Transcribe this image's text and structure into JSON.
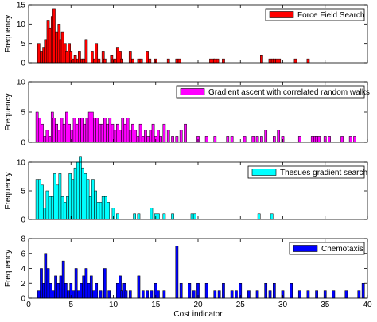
{
  "chart_data": [
    {
      "type": "bar",
      "series": [
        {
          "name": "Force Field Search",
          "color": "#ff0000",
          "x": [
            1.2,
            1.5,
            1.8,
            2.0,
            2.3,
            2.5,
            2.8,
            3.0,
            3.3,
            3.6,
            3.8,
            4.0,
            4.3,
            4.5,
            4.8,
            5.0,
            5.3,
            5.5,
            5.8,
            6.0,
            6.3,
            6.5,
            6.8,
            7.5,
            7.8,
            8.0,
            8.3,
            8.8,
            9.0,
            9.8,
            10.0,
            10.3,
            10.5,
            10.8,
            11.0,
            12.0,
            12.3,
            13.0,
            13.3,
            14.0,
            14.3,
            15.0,
            16.5,
            17.5,
            17.8,
            21.5,
            21.8,
            22.0,
            22.3,
            23.0,
            27.5,
            28.5,
            28.8,
            29.0,
            29.3,
            29.6,
            31.5,
            33.0
          ],
          "values": [
            5,
            3,
            4,
            6,
            11,
            9,
            12,
            14,
            8,
            10,
            6,
            8,
            5,
            3,
            5,
            3,
            1,
            2,
            1,
            3,
            1,
            1,
            6,
            3,
            1,
            5,
            1,
            3,
            1,
            2,
            1,
            1,
            4,
            3,
            1,
            3,
            1,
            1,
            1,
            3,
            1,
            1,
            1,
            1,
            1,
            1,
            1,
            1,
            1,
            1,
            2,
            1,
            1,
            1,
            1,
            1,
            1,
            1
          ]
        }
      ],
      "ylabel": "Frequency",
      "ylim": [
        0,
        15
      ],
      "yticks": [
        "0",
        "5",
        "10",
        "15"
      ],
      "legend": "top-right"
    },
    {
      "type": "bar",
      "series": [
        {
          "name": "Gradient ascent with correlated random walks",
          "color": "#ff00ff",
          "x": [
            1.0,
            1.3,
            1.6,
            1.9,
            2.2,
            2.5,
            2.8,
            3.0,
            3.3,
            3.6,
            3.9,
            4.2,
            4.5,
            4.8,
            5.1,
            5.4,
            5.7,
            6.0,
            6.3,
            6.6,
            6.9,
            7.2,
            7.5,
            7.8,
            8.1,
            8.4,
            8.7,
            9.0,
            9.3,
            9.6,
            9.9,
            10.2,
            10.5,
            10.8,
            11.1,
            11.4,
            11.7,
            12.0,
            12.3,
            12.6,
            12.9,
            13.2,
            13.5,
            13.8,
            14.1,
            14.4,
            14.7,
            15.0,
            15.3,
            15.6,
            16.0,
            16.5,
            17.0,
            17.5,
            18.0,
            18.5,
            20.0,
            21.0,
            22.0,
            23.5,
            24.0,
            25.5,
            26.5,
            27.0,
            27.5,
            28.0,
            29.0,
            29.5,
            30.0,
            32.0,
            33.5,
            33.8,
            34.0,
            34.3,
            35.0,
            35.5,
            37.0,
            38.0,
            38.5
          ],
          "values": [
            5,
            4,
            3,
            1,
            2,
            1,
            5,
            4,
            3,
            2,
            4,
            3,
            5,
            3,
            2,
            4,
            3,
            4,
            4,
            3,
            4,
            5,
            5,
            4,
            4,
            3,
            3,
            4,
            3,
            4,
            3,
            2,
            3,
            2,
            4,
            3,
            4,
            2,
            3,
            2,
            1,
            3,
            1,
            2,
            1,
            2,
            3,
            1,
            2,
            1,
            3,
            2,
            1,
            1,
            2,
            3,
            1,
            1,
            1,
            1,
            1,
            1,
            1,
            1,
            1,
            2,
            1,
            2,
            1,
            1,
            1,
            1,
            1,
            1,
            1,
            1,
            1,
            1,
            1
          ]
        }
      ],
      "ylabel": "Frequency",
      "ylim": [
        0,
        10
      ],
      "yticks": [
        "0",
        "5",
        "10"
      ],
      "legend": "top-right"
    },
    {
      "type": "bar",
      "series": [
        {
          "name": "Thesues gradient search",
          "color": "#00ffff",
          "x": [
            1.0,
            1.3,
            1.6,
            1.9,
            2.2,
            2.5,
            2.8,
            3.1,
            3.4,
            3.7,
            4.0,
            4.3,
            4.6,
            4.9,
            5.2,
            5.5,
            5.8,
            6.1,
            6.4,
            6.7,
            7.0,
            7.3,
            7.6,
            7.9,
            8.2,
            8.5,
            8.8,
            9.1,
            9.4,
            10.0,
            10.5,
            12.5,
            13.0,
            14.5,
            15.0,
            15.3,
            16.0,
            17.0,
            19.3,
            19.6,
            27.2,
            28.7
          ],
          "values": [
            7,
            7,
            6,
            2,
            5,
            4,
            4,
            8,
            6,
            8,
            4,
            3,
            4,
            8,
            7,
            9,
            10,
            11,
            9,
            8,
            7,
            4,
            7,
            5,
            3,
            3,
            4,
            4,
            3,
            2,
            1,
            1,
            1,
            2,
            1,
            1,
            1,
            1,
            1,
            1,
            1,
            1
          ]
        }
      ],
      "ylabel": "Frequency",
      "ylim": [
        0,
        10
      ],
      "yticks": [
        "0",
        "5",
        "10"
      ],
      "legend": "top-right"
    },
    {
      "type": "bar",
      "series": [
        {
          "name": "Chemotaxis",
          "color": "#0000ff",
          "x": [
            1.2,
            1.5,
            1.8,
            2.0,
            2.3,
            2.6,
            2.9,
            3.2,
            3.5,
            3.8,
            4.1,
            4.4,
            4.7,
            5.0,
            5.3,
            5.6,
            5.9,
            6.2,
            6.5,
            6.8,
            7.1,
            7.4,
            7.7,
            8.0,
            8.5,
            9.0,
            9.5,
            10.5,
            10.8,
            11.0,
            11.3,
            11.5,
            12.0,
            13.0,
            13.5,
            14.0,
            14.5,
            15.0,
            15.3,
            16.0,
            17.5,
            18.0,
            19.0,
            19.5,
            20.0,
            21.0,
            22.0,
            22.5,
            23.0,
            24.0,
            24.5,
            25.0,
            26.0,
            27.0,
            28.0,
            28.5,
            29.0,
            30.0,
            31.0,
            32.0,
            33.0,
            34.0,
            35.0,
            36.0,
            37.5,
            39.0,
            39.5
          ],
          "values": [
            1,
            4,
            2,
            6,
            4,
            2,
            1,
            3,
            2,
            3,
            5,
            2,
            1,
            2,
            1,
            4,
            1,
            2,
            3,
            4,
            2,
            3,
            1,
            2,
            1,
            4,
            1,
            2,
            3,
            1,
            2,
            1,
            1,
            3,
            1,
            1,
            1,
            2,
            1,
            1,
            7,
            2,
            2,
            1,
            2,
            2,
            1,
            1,
            2,
            1,
            1,
            2,
            1,
            1,
            2,
            1,
            2,
            1,
            2,
            1,
            1,
            1,
            1,
            1,
            1,
            1,
            2
          ]
        }
      ],
      "ylabel": "Frequency",
      "ylim": [
        0,
        8
      ],
      "yticks": [
        "0",
        "2",
        "4",
        "6",
        "8"
      ],
      "legend": "top-right"
    }
  ],
  "x_axis": {
    "label": "Cost indicator",
    "range": [
      0,
      40
    ],
    "ticks": [
      "0",
      "5",
      "10",
      "15",
      "20",
      "25",
      "30",
      "35",
      "40"
    ]
  }
}
